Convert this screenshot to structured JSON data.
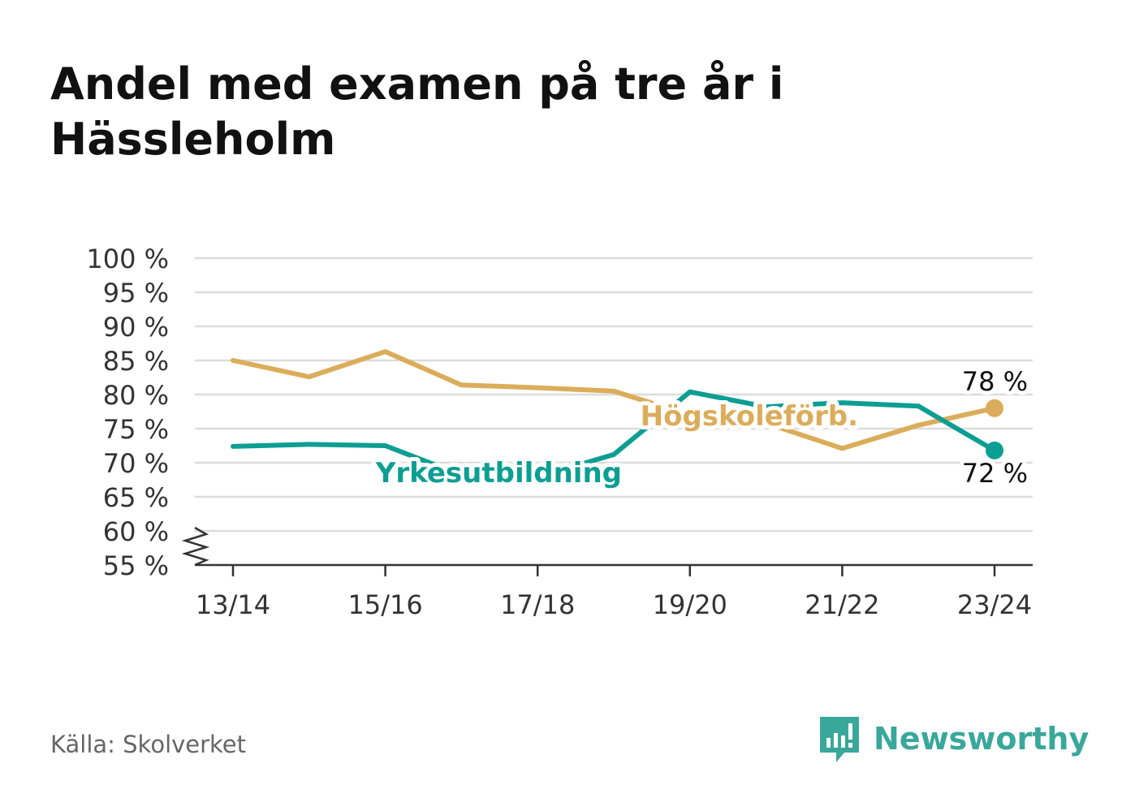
{
  "title": "Andel med examen på tre år i Hässleholm",
  "source": "Källa: Skolverket",
  "brand": {
    "name": "Newsworthy",
    "icon": "newsworthy-logo-icon",
    "color": "#3aa79b"
  },
  "chart_data": {
    "type": "line",
    "title": "Andel med examen på tre år i Hässleholm",
    "xlabel": "",
    "ylabel": "",
    "x": [
      "13/14",
      "14/15",
      "15/16",
      "16/17",
      "17/18",
      "18/19",
      "19/20",
      "20/21",
      "21/22",
      "22/23",
      "23/24"
    ],
    "x_tick_labels": [
      "13/14",
      "15/16",
      "17/18",
      "19/20",
      "21/22",
      "23/24"
    ],
    "y_ticks": [
      "100 %",
      "95 %",
      "90 %",
      "85 %",
      "80 %",
      "75 %",
      "70 %",
      "65 %",
      "60 %",
      "55 %"
    ],
    "y_tick_values": [
      100,
      95,
      90,
      85,
      80,
      75,
      70,
      65,
      60,
      55
    ],
    "ylim": [
      55,
      100
    ],
    "y_axis_break": true,
    "grid": true,
    "series": [
      {
        "name": "Högskoleförb.",
        "color": "#dbad5b",
        "values": [
          85.0,
          82.6,
          86.3,
          81.4,
          81.0,
          80.5,
          77.0,
          75.8,
          72.1,
          75.5,
          78.0
        ],
        "end_label": "78 %"
      },
      {
        "name": "Yrkesutbildning",
        "color": "#0d9e93",
        "values": [
          72.4,
          72.7,
          72.5,
          68.2,
          67.9,
          71.2,
          80.4,
          78.2,
          78.8,
          78.3,
          71.8
        ],
        "end_label": "72 %"
      }
    ]
  }
}
